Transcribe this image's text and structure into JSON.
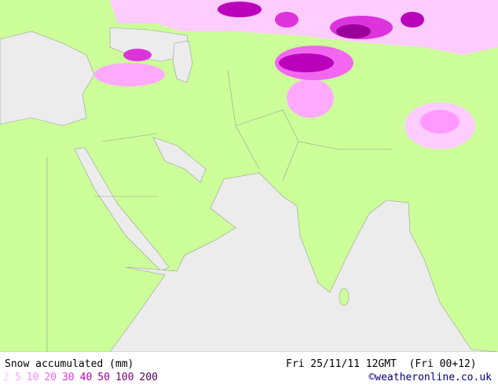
{
  "map": {
    "title": "Snow accumulated (mm)",
    "valid_time": "Fri 25/11/11 12GMT  (Fri 00+12)",
    "legend": [
      {
        "label": "2",
        "color": "#ffccff"
      },
      {
        "label": "5",
        "color": "#ffaaff"
      },
      {
        "label": "10",
        "color": "#ff88ff"
      },
      {
        "label": "20",
        "color": "#f266f2"
      },
      {
        "label": "30",
        "color": "#dd33dd"
      },
      {
        "label": "40",
        "color": "#bb00bb"
      },
      {
        "label": "50",
        "color": "#990099"
      },
      {
        "label": "100",
        "color": "#770077"
      },
      {
        "label": "200",
        "color": "#550055"
      }
    ],
    "credit": "©weatheronline.co.uk"
  }
}
